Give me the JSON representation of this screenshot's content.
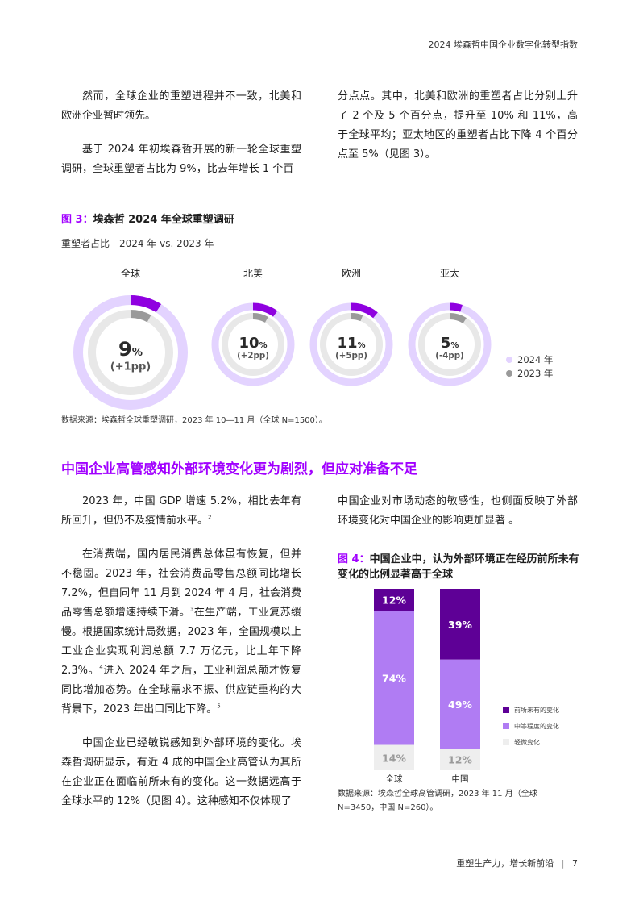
{
  "header": {
    "title": "2024 埃森哲中国企业数字化转型指数"
  },
  "top": {
    "left_paras": [
      "然而，全球企业的重塑进程并不一致，北美和欧洲企业暂时领先。",
      "基于 2024 年初埃森哲开展的新一轮全球重塑调研，全球重塑者占比为 9%，比去年增长 1 个百"
    ],
    "right_paras": [
      "分点点。其中，北美和欧洲的重塑者占比分别上升了 2 个及 5 个百分点，提升至 10% 和 11%，高于全球平均；亚太地区的重塑者占比下降 4 个百分点至 5%（见图 3）。"
    ]
  },
  "fig3": {
    "label": "图 3：",
    "title": "埃森哲 2024 年全球重塑调研",
    "subtitle": "重塑者占比　2024 年 vs. 2023 年",
    "source": "数据来源：埃森哲全球重塑调研，2023 年 10—11 月（全球 N=1500）。",
    "colors": {
      "y2024": "#8f00e0",
      "y2023": "#9a9a9a",
      "track2024": "#e3d3ff",
      "track2023": "#e8e8e8"
    }
  },
  "chart_data": [
    {
      "type": "pie",
      "title": "埃森哲 2024 年全球重塑调研",
      "regions": [
        {
          "name": "全球",
          "value_2024": 9,
          "value_2023": 8,
          "label": "9",
          "pct": "%",
          "delta": "(+1pp)"
        },
        {
          "name": "北美",
          "value_2024": 10,
          "value_2023": 8,
          "label": "10",
          "pct": "%",
          "delta": "(+2pp)"
        },
        {
          "name": "欧洲",
          "value_2024": 11,
          "value_2023": 6,
          "label": "11",
          "pct": "%",
          "delta": "(+5pp)"
        },
        {
          "name": "亚太",
          "value_2024": 5,
          "value_2023": 9,
          "label": "5",
          "pct": "%",
          "delta": "(-4pp)"
        }
      ],
      "legend": [
        "2024 年",
        "2023 年"
      ],
      "legend_position": "bottom-right"
    },
    {
      "type": "bar",
      "stacked": true,
      "categories": [
        "全球",
        "中国"
      ],
      "series": [
        {
          "name": "前所未有的变化",
          "values": [
            12,
            39
          ],
          "color": "#5e0096"
        },
        {
          "name": "中等程度的变化",
          "values": [
            74,
            49
          ],
          "color": "#b07cf3"
        },
        {
          "name": "轻微变化",
          "values": [
            14,
            12
          ],
          "color": "#eeeeee"
        }
      ],
      "value_suffix": "%",
      "legend_position": "right"
    }
  ],
  "section2": {
    "title": "中国企业高管感知外部环境变化更为剧烈，但应对准备不足"
  },
  "bottom": {
    "p1": {
      "text": "2023 年，中国 GDP 增速 5.2%，相比去年有所回升，但仍不及疫情前水平。",
      "sup": "2"
    },
    "p2": {
      "a": "在消费端，国内居民消费总体虽有恢复，但并不稳固。2023 年，社会消费品零售总额同比增长 7.2%，但自同年 11 月到 2024 年 4 月，社会消费品零售总额增速持续下滑。",
      "sup1": "3",
      "b": "在生产端，工业复苏缓慢。根据国家统计局数据，2023 年，全国规模以上工业企业实现利润总额 7.7 万亿元，比上年下降 2.3%。",
      "sup2": "4",
      "c": "进入 2024 年之后，工业利润总额才恢复同比增加态势。在全球需求不振、供应链重构的大背景下，2023 年出口同比下降。",
      "sup3": "5"
    },
    "p3": "中国企业已经敏锐感知到外部环境的变化。埃森哲调研显示，有近 4 成的中国企业高管认为其所在企业正在面临前所未有的变化。这一数据远高于全球水平的 12%（见图 4）。这种感知不仅体现了",
    "right_para": "中国企业对市场动态的敏感性，也侧面反映了外部环境变化对中国企业的影响更加显著 。"
  },
  "fig4": {
    "label": "图 4：",
    "title": "中国企业中，认为外部环境正在经历前所未有变化的比例显著高于全球",
    "source": "数据来源：埃森哲全球高管调研，2023 年 11 月（全球 N=3450，中国 N=260）。"
  },
  "footer": {
    "text": "重塑生产力，增长新前沿",
    "page": "7"
  }
}
